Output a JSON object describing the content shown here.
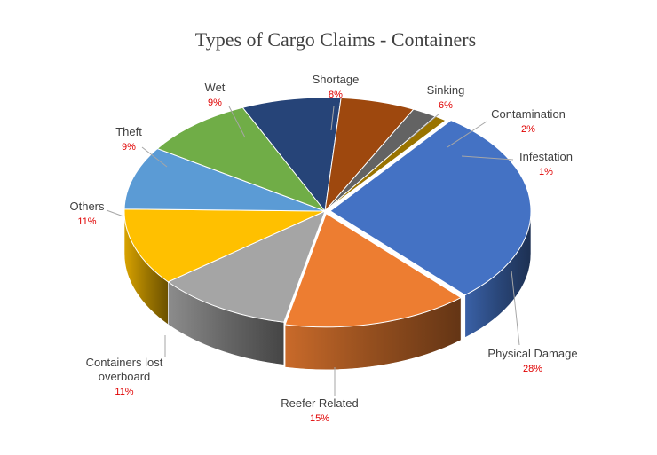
{
  "chart_data": {
    "type": "pie",
    "style": "3d-exploded-perspective",
    "title": "Types of Cargo Claims - Containers",
    "legend": "none",
    "slices": [
      {
        "label": "Physical Damage",
        "value": 28,
        "value_label": "28%",
        "color": "#4472c4"
      },
      {
        "label": "Reefer Related",
        "value": 15,
        "value_label": "15%",
        "color": "#ed7d31"
      },
      {
        "label": "Containers lost overboard",
        "value": 11,
        "value_label": "11%",
        "color": "#a5a5a5"
      },
      {
        "label": "Others",
        "value": 11,
        "value_label": "11%",
        "color": "#ffc000"
      },
      {
        "label": "Theft",
        "value": 9,
        "value_label": "9%",
        "color": "#5b9bd5"
      },
      {
        "label": "Wet",
        "value": 9,
        "value_label": "9%",
        "color": "#70ad47"
      },
      {
        "label": "Shortage",
        "value": 8,
        "value_label": "8%",
        "color": "#264478"
      },
      {
        "label": "Sinking",
        "value": 6,
        "value_label": "6%",
        "color": "#9e480e"
      },
      {
        "label": "Contamination",
        "value": 2,
        "value_label": "2%",
        "color": "#636363"
      },
      {
        "label": "Infestation",
        "value": 1,
        "value_label": "1%",
        "color": "#997300"
      }
    ]
  }
}
